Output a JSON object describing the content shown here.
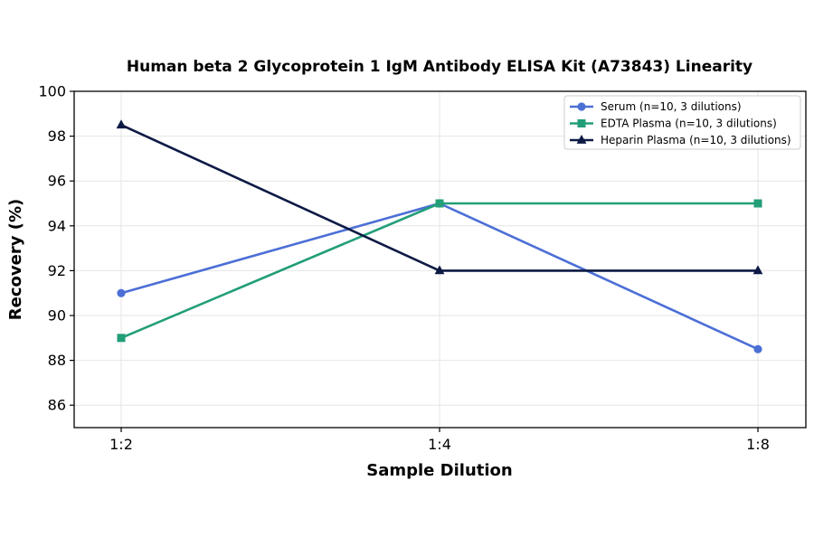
{
  "chart_data": {
    "type": "line",
    "title": "Human beta 2 Glycoprotein 1 IgM Antibody ELISA Kit (A73843) Linearity",
    "xlabel": "Sample Dilution",
    "ylabel": "Recovery (%)",
    "categories": [
      "1:2",
      "1:4",
      "1:8"
    ],
    "ylim": [
      85,
      100
    ],
    "yticks": [
      86,
      88,
      90,
      92,
      94,
      96,
      98,
      100
    ],
    "grid": true,
    "legend_position": "top-right",
    "series": [
      {
        "name": "Serum (n=10, 3 dilutions)",
        "values": [
          91,
          95,
          88.5
        ],
        "color": "#4c6fd6",
        "marker": "circle"
      },
      {
        "name": "EDTA Plasma (n=10, 3 dilutions)",
        "values": [
          89,
          95,
          95
        ],
        "color": "#229e78",
        "marker": "square"
      },
      {
        "name": "Heparin Plasma (n=10, 3 dilutions)",
        "values": [
          98.5,
          92,
          92
        ],
        "color": "#0d1a45",
        "marker": "triangle"
      }
    ]
  }
}
